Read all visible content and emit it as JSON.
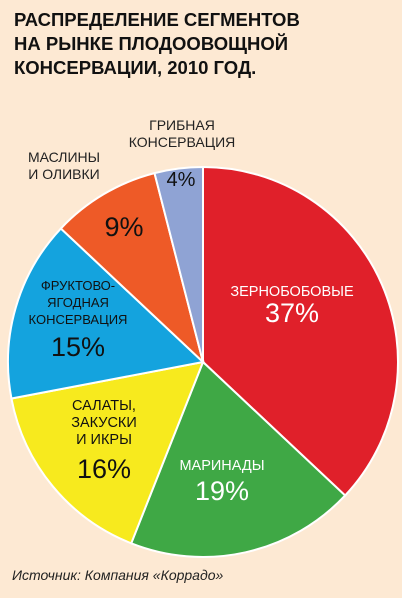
{
  "title_lines": [
    "РАСПРЕДЕЛЕНИЕ СЕГМЕНТОВ",
    "НА РЫНКЕ ПЛОДООВОЩНОЙ",
    "КОНСЕРВАЦИИ, 2010 ГОД."
  ],
  "source": "Источник: Компания «Коррадо»",
  "chart_data": {
    "type": "pie",
    "title": "РАСПРЕДЕЛЕНИЕ СЕГМЕНТОВ НА РЫНКЕ ПЛОДООВОЩНОЙ КОНСЕРВАЦИИ, 2010 ГОД.",
    "unit": "%",
    "slices": [
      {
        "label": [
          "ЗЕРНОБОБОВЫЕ"
        ],
        "value": 37,
        "value_label": "37%",
        "color": "#e0202a",
        "text_color": "#ffffff"
      },
      {
        "label": [
          "МАРИНАДЫ"
        ],
        "value": 19,
        "value_label": "19%",
        "color": "#3fa845",
        "text_color": "#ffffff"
      },
      {
        "label": [
          "САЛАТЫ,",
          "ЗАКУСКИ",
          "И ИКРЫ"
        ],
        "value": 16,
        "value_label": "16%",
        "color": "#f7ea1e",
        "text_color": "#111111"
      },
      {
        "label": [
          "ФРУКТОВО-",
          "ЯГОДНАЯ",
          "КОНСЕРВАЦИЯ"
        ],
        "value": 15,
        "value_label": "15%",
        "color": "#14a3de",
        "text_color": "#111111"
      },
      {
        "label": [
          "МАСЛИНЫ",
          "И ОЛИВКИ"
        ],
        "value": 9,
        "value_label": "9%",
        "color": "#ee5a27",
        "text_color": "#111111"
      },
      {
        "label": [
          "ГРИБНАЯ",
          "КОНСЕРВАЦИЯ"
        ],
        "value": 4,
        "value_label": "4%",
        "color": "#8fa3d4",
        "text_color": "#111111"
      }
    ]
  }
}
